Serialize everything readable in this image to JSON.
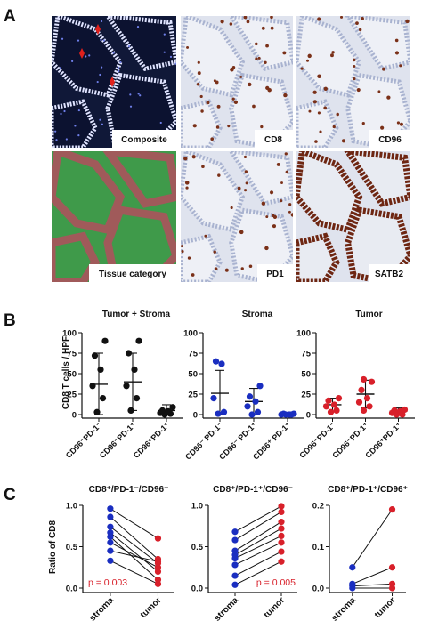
{
  "panels": {
    "A": {
      "letter": "A",
      "tiles": [
        {
          "label": "Composite",
          "kind": "composite"
        },
        {
          "label": "CD8",
          "kind": "ihc_sparse"
        },
        {
          "label": "CD96",
          "kind": "ihc_sparse"
        },
        {
          "label": "Tissue category",
          "kind": "tissue"
        },
        {
          "label": "PD1",
          "kind": "ihc_sparse"
        },
        {
          "label": "SATB2",
          "kind": "ihc_nuclear"
        }
      ],
      "colors": {
        "ihc_bg": "#dfe3ee",
        "ihc_dot": "#7a3018",
        "satb2": "#6e2612",
        "tissue_green": "#3f9a4a",
        "tissue_red": "#a05a5a",
        "composite_bg": "#101838",
        "composite_cells": "#e0e4ff",
        "arrow": "#e0201c"
      }
    },
    "B": {
      "letter": "B",
      "y_label": "CD8 T cells / HPF",
      "y_ticks": [
        "0",
        "25",
        "50",
        "75",
        "100"
      ],
      "categories": [
        "CD96⁻PD-1⁻",
        "CD96⁻PD-1⁺",
        "CD96⁺PD-1⁺"
      ]
    },
    "C": {
      "letter": "C",
      "y_label": "Ratio of CD8",
      "x_labels": [
        "stroma",
        "tumor"
      ]
    }
  },
  "chart_data": [
    {
      "type": "scatter",
      "title": "Tumor + Stroma",
      "color": "#111111",
      "ylim": [
        0,
        100
      ],
      "yticks": [
        0,
        25,
        50,
        75,
        100
      ],
      "categories": [
        "CD96⁻PD-1⁻",
        "CD96⁻PD-1⁺",
        "CD96⁺PD-1⁺"
      ],
      "points": [
        [
          3,
          20,
          35,
          55,
          72,
          90
        ],
        [
          5,
          20,
          35,
          55,
          75,
          90
        ],
        [
          0,
          1,
          2,
          4,
          5,
          9
        ]
      ],
      "mean": [
        37,
        40,
        5
      ],
      "sd": [
        38,
        35,
        7
      ]
    },
    {
      "type": "scatter",
      "title": "Stroma",
      "color": "#1a2ec0",
      "ylim": [
        0,
        100
      ],
      "yticks": [
        0,
        25,
        50,
        75,
        100
      ],
      "categories": [
        "CD96⁻ PD-1⁻",
        "CD96⁻ PD-1⁺",
        "CD96⁺ PD-1⁺"
      ],
      "points": [
        [
          1,
          3,
          20,
          62,
          65
        ],
        [
          0,
          3,
          10,
          16,
          22,
          35
        ],
        [
          0,
          0,
          0,
          0,
          1,
          1
        ]
      ],
      "mean": [
        26,
        16,
        0
      ],
      "sd": [
        28,
        16,
        1
      ]
    },
    {
      "type": "scatter",
      "title": "Tumor",
      "color": "#d8202a",
      "ylim": [
        0,
        100
      ],
      "yticks": [
        0,
        25,
        50,
        75,
        100
      ],
      "categories": [
        "CD96⁻PD-1⁻",
        "CD96⁻PD-1⁺",
        "CD96⁺PD-1⁺"
      ],
      "points": [
        [
          3,
          5,
          10,
          12,
          17,
          20
        ],
        [
          5,
          10,
          15,
          20,
          30,
          40,
          43
        ],
        [
          0,
          0,
          2,
          4,
          5,
          6
        ]
      ],
      "mean": [
        12,
        25,
        4
      ],
      "sd": [
        8,
        17,
        4
      ]
    },
    {
      "type": "line",
      "title": "CD8⁺/PD-1⁻/CD96⁻",
      "ylim": [
        0,
        1.0
      ],
      "yticks": [
        "0.0",
        "0.5",
        "1.0"
      ],
      "x": [
        "stroma",
        "tumor"
      ],
      "pairs": [
        [
          0.96,
          0.6
        ],
        [
          0.86,
          0.35
        ],
        [
          0.74,
          0.3
        ],
        [
          0.67,
          0.2
        ],
        [
          0.62,
          0.1
        ],
        [
          0.55,
          0.25
        ],
        [
          0.45,
          0.32
        ],
        [
          0.33,
          0.05
        ]
      ],
      "annotation": "p = 0.003",
      "annotation_color": "#d8202a"
    },
    {
      "type": "line",
      "title": "CD8⁺/PD-1⁺/CD96⁻",
      "ylim": [
        0,
        1.0
      ],
      "yticks": [
        "0.0",
        "0.5",
        "1.0"
      ],
      "x": [
        "stroma",
        "tumor"
      ],
      "pairs": [
        [
          0.68,
          0.99
        ],
        [
          0.58,
          0.92
        ],
        [
          0.45,
          0.8
        ],
        [
          0.4,
          0.72
        ],
        [
          0.36,
          0.63
        ],
        [
          0.28,
          0.55
        ],
        [
          0.15,
          0.44
        ],
        [
          0.04,
          0.32
        ]
      ],
      "annotation": "p = 0.005",
      "annotation_color": "#d8202a"
    },
    {
      "type": "line",
      "title": "CD8⁺/PD-1⁺/CD96⁺",
      "ylim": [
        0,
        0.2
      ],
      "yticks": [
        "0.0",
        "0.1",
        "0.2"
      ],
      "x": [
        "stroma",
        "tumor"
      ],
      "pairs": [
        [
          0.05,
          0.19
        ],
        [
          0.01,
          0.05
        ],
        [
          0.005,
          0.01
        ],
        [
          0.0,
          0.0
        ]
      ],
      "annotation": "",
      "annotation_color": "#d8202a"
    }
  ]
}
